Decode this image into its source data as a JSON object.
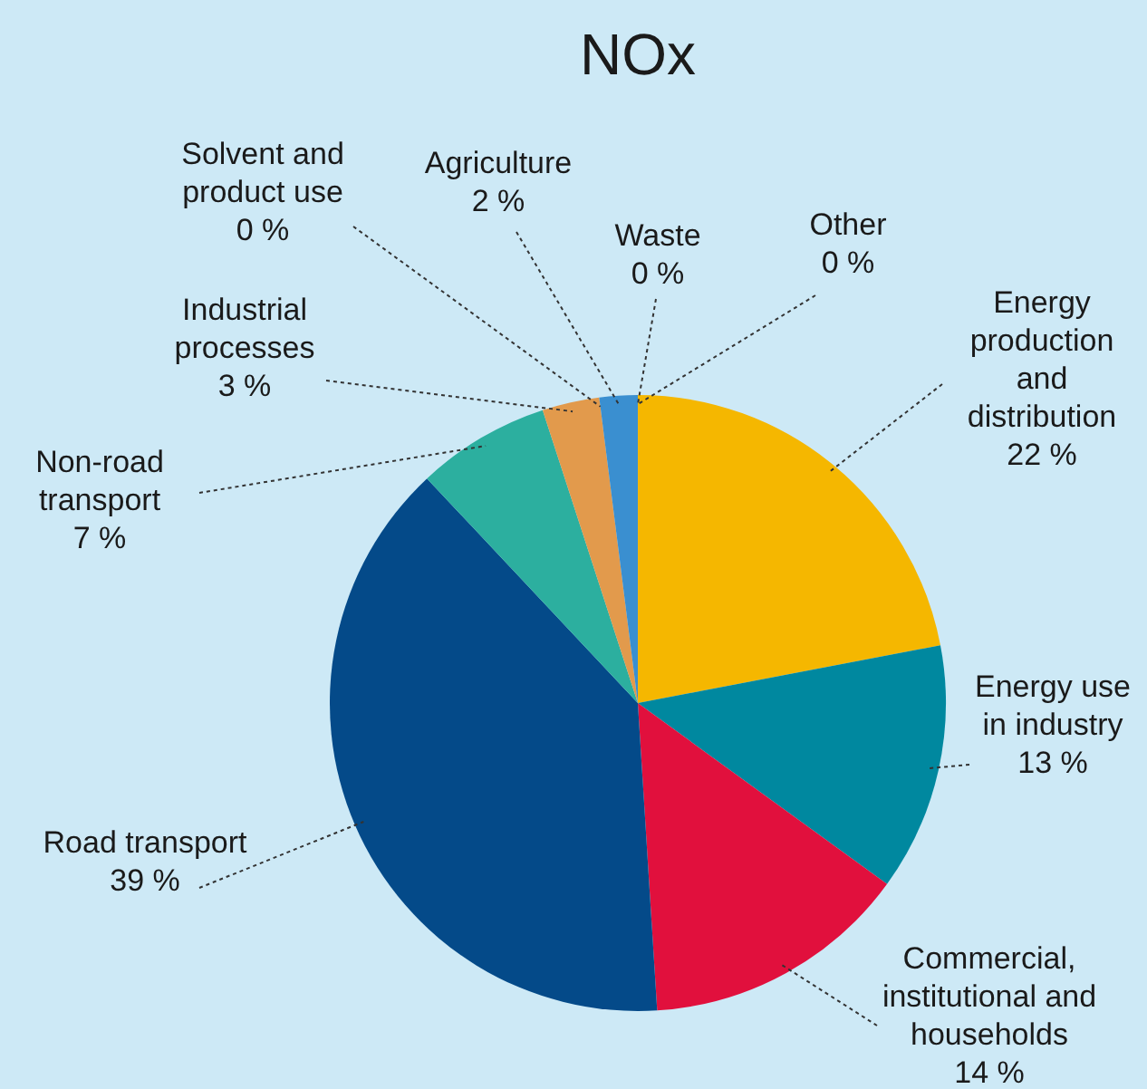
{
  "chart_data": {
    "type": "pie",
    "title": "NOx",
    "categories": [
      "Energy production and distribution",
      "Energy use in industry",
      "Commercial, institutional and households",
      "Road transport",
      "Non-road transport",
      "Industrial processes",
      "Solvent and product use",
      "Agriculture",
      "Waste",
      "Other"
    ],
    "values": [
      22,
      13,
      14,
      39,
      7,
      3,
      0,
      2,
      0,
      0
    ],
    "colors": [
      "#f5b700",
      "#00889f",
      "#e1103d",
      "#044a89",
      "#2caf9f",
      "#e29a4c",
      "#9aa7b0",
      "#3a8fd0",
      "#6f6f9f",
      "#e5007d"
    ],
    "value_labels": [
      "22 %",
      "13 %",
      "14 %",
      "39 %",
      "7 %",
      "3 %",
      "0 %",
      "2 %",
      "0 %",
      "0 %"
    ],
    "legend": false
  }
}
